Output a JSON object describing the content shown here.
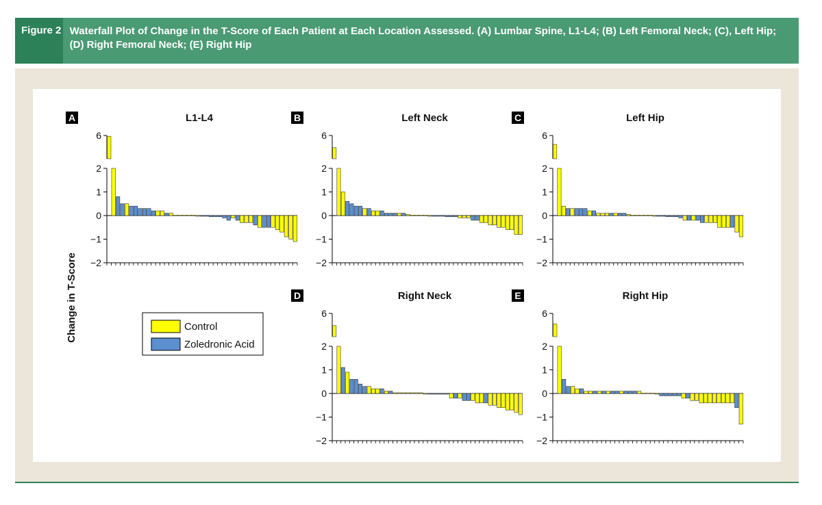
{
  "figure": {
    "label": "Figure 2",
    "caption": "Waterfall Plot of Change in the T-Score of Each Patient at Each Location Assessed. (A) Lumbar Spine, L1-L4; (B) Left Femoral Neck; (C), Left Hip; (D) Right Femoral Neck; (E) Right Hip"
  },
  "colors": {
    "control": "#ffff00",
    "zoledronic": "#5b8fd0",
    "header": "#4a9a74",
    "header_label": "#2d8159",
    "frame": "#ece6da"
  },
  "legend": {
    "items": [
      "Control",
      "Zoledronic Acid"
    ]
  },
  "shared_ylabel": "Change in T-Score",
  "chart_data": [
    {
      "panel": "A",
      "title": "L1-L4",
      "type": "bar",
      "y_ticks": [
        6,
        2,
        1,
        0,
        -1,
        -2
      ],
      "ylim": [
        -2,
        6
      ],
      "y_axis_break": true,
      "values": [
        5.9,
        2.0,
        0.8,
        0.5,
        0.5,
        0.4,
        0.4,
        0.3,
        0.3,
        0.3,
        0.2,
        0.2,
        0.2,
        0.1,
        0.1,
        0.02,
        0.02,
        0.02,
        0.02,
        0.02,
        0.0,
        -0.03,
        -0.03,
        -0.05,
        -0.05,
        -0.05,
        -0.1,
        -0.2,
        -0.1,
        -0.2,
        -0.3,
        -0.3,
        -0.3,
        -0.4,
        -0.5,
        -0.5,
        -0.5,
        -0.5,
        -0.6,
        -0.7,
        -0.9,
        -1.0,
        -1.1
      ],
      "groups": [
        "C",
        "C",
        "Z",
        "Z",
        "C",
        "Z",
        "Z",
        "Z",
        "Z",
        "Z",
        "Z",
        "C",
        "C",
        "Z",
        "C",
        "C",
        "C",
        "C",
        "C",
        "C",
        "C",
        "Z",
        "Z",
        "Z",
        "Z",
        "Z",
        "Z",
        "Z",
        "C",
        "Z",
        "C",
        "C",
        "C",
        "Z",
        "C",
        "Z",
        "Z",
        "C",
        "C",
        "C",
        "C",
        "C",
        "C"
      ]
    },
    {
      "panel": "B",
      "title": "Left Neck",
      "type": "bar",
      "y_ticks": [
        6,
        2,
        1,
        0,
        -1,
        -2
      ],
      "ylim": [
        -2,
        6
      ],
      "y_axis_break": true,
      "values": [
        4.5,
        2.0,
        1.0,
        0.6,
        0.5,
        0.4,
        0.4,
        0.3,
        0.3,
        0.2,
        0.2,
        0.2,
        0.1,
        0.1,
        0.1,
        0.1,
        0.1,
        0.05,
        0.02,
        0.02,
        0.02,
        0.02,
        0.0,
        -0.03,
        -0.03,
        -0.03,
        -0.05,
        -0.05,
        -0.05,
        -0.1,
        -0.1,
        -0.1,
        -0.2,
        -0.2,
        -0.3,
        -0.3,
        -0.4,
        -0.4,
        -0.5,
        -0.5,
        -0.6,
        -0.6,
        -0.8,
        -0.8
      ],
      "groups": [
        "C",
        "C",
        "C",
        "Z",
        "Z",
        "Z",
        "Z",
        "C",
        "Z",
        "C",
        "C",
        "Z",
        "Z",
        "Z",
        "Z",
        "C",
        "Z",
        "C",
        "C",
        "C",
        "C",
        "C",
        "C",
        "Z",
        "Z",
        "Z",
        "Z",
        "Z",
        "Z",
        "C",
        "C",
        "C",
        "Z",
        "Z",
        "C",
        "C",
        "C",
        "C",
        "C",
        "C",
        "C",
        "C",
        "C",
        "C"
      ]
    },
    {
      "panel": "C",
      "title": "Left Hip",
      "type": "bar",
      "y_ticks": [
        6,
        2,
        1,
        0,
        -1,
        -2
      ],
      "ylim": [
        -2,
        6
      ],
      "y_axis_break": true,
      "values": [
        4.9,
        2.0,
        0.4,
        0.3,
        0.3,
        0.3,
        0.3,
        0.3,
        0.2,
        0.2,
        0.1,
        0.1,
        0.1,
        0.1,
        0.1,
        0.1,
        0.1,
        0.05,
        0.02,
        0.02,
        0.02,
        0.02,
        0.02,
        0.0,
        -0.03,
        -0.03,
        -0.05,
        -0.05,
        -0.05,
        -0.1,
        -0.2,
        -0.2,
        -0.2,
        -0.2,
        -0.3,
        -0.3,
        -0.3,
        -0.3,
        -0.5,
        -0.5,
        -0.5,
        -0.5,
        -0.7,
        -0.9
      ],
      "groups": [
        "C",
        "C",
        "C",
        "Z",
        "C",
        "Z",
        "Z",
        "Z",
        "C",
        "Z",
        "C",
        "C",
        "C",
        "Z",
        "C",
        "Z",
        "Z",
        "C",
        "C",
        "C",
        "C",
        "C",
        "C",
        "C",
        "Z",
        "Z",
        "Z",
        "Z",
        "Z",
        "Z",
        "C",
        "Z",
        "C",
        "Z",
        "Z",
        "C",
        "C",
        "C",
        "C",
        "C",
        "C",
        "Z",
        "C",
        "C"
      ]
    },
    {
      "panel": "D",
      "title": "Right Neck",
      "type": "bar",
      "y_ticks": [
        6,
        2,
        1,
        0,
        -1,
        -2
      ],
      "ylim": [
        -2,
        6
      ],
      "y_axis_break": true,
      "values": [
        4.5,
        2.0,
        1.1,
        0.9,
        0.6,
        0.6,
        0.4,
        0.3,
        0.3,
        0.2,
        0.2,
        0.2,
        0.1,
        0.1,
        0.03,
        0.03,
        0.03,
        0.03,
        0.03,
        0.03,
        0.03,
        0.0,
        -0.03,
        -0.03,
        -0.03,
        -0.03,
        -0.03,
        -0.2,
        -0.2,
        -0.2,
        -0.3,
        -0.3,
        -0.3,
        -0.4,
        -0.4,
        -0.4,
        -0.5,
        -0.5,
        -0.6,
        -0.6,
        -0.7,
        -0.7,
        -0.8,
        -0.9
      ],
      "groups": [
        "C",
        "C",
        "Z",
        "C",
        "Z",
        "Z",
        "Z",
        "Z",
        "C",
        "C",
        "C",
        "Z",
        "C",
        "Z",
        "C",
        "C",
        "C",
        "C",
        "C",
        "C",
        "C",
        "C",
        "Z",
        "Z",
        "Z",
        "Z",
        "Z",
        "C",
        "Z",
        "C",
        "Z",
        "Z",
        "C",
        "C",
        "C",
        "Z",
        "C",
        "C",
        "C",
        "C",
        "C",
        "C",
        "C",
        "C"
      ]
    },
    {
      "panel": "E",
      "title": "Right Hip",
      "type": "bar",
      "y_ticks": [
        6,
        2,
        1,
        0,
        -1,
        -2
      ],
      "ylim": [
        -2,
        6
      ],
      "y_axis_break": true,
      "values": [
        4.7,
        2.0,
        0.6,
        0.3,
        0.3,
        0.2,
        0.2,
        0.1,
        0.1,
        0.1,
        0.1,
        0.1,
        0.1,
        0.1,
        0.1,
        0.1,
        0.1,
        0.1,
        0.1,
        0.1,
        0.02,
        0.02,
        0.02,
        0.0,
        -0.1,
        -0.1,
        -0.1,
        -0.1,
        -0.1,
        -0.2,
        -0.2,
        -0.3,
        -0.3,
        -0.4,
        -0.4,
        -0.4,
        -0.4,
        -0.4,
        -0.4,
        -0.4,
        -0.4,
        -0.6,
        -1.3
      ],
      "groups": [
        "C",
        "C",
        "Z",
        "Z",
        "C",
        "C",
        "Z",
        "C",
        "C",
        "Z",
        "C",
        "Z",
        "C",
        "Z",
        "Z",
        "C",
        "Z",
        "Z",
        "Z",
        "C",
        "C",
        "C",
        "C",
        "C",
        "Z",
        "Z",
        "Z",
        "Z",
        "Z",
        "C",
        "Z",
        "C",
        "C",
        "C",
        "C",
        "C",
        "C",
        "C",
        "C",
        "C",
        "C",
        "Z",
        "C"
      ]
    }
  ]
}
